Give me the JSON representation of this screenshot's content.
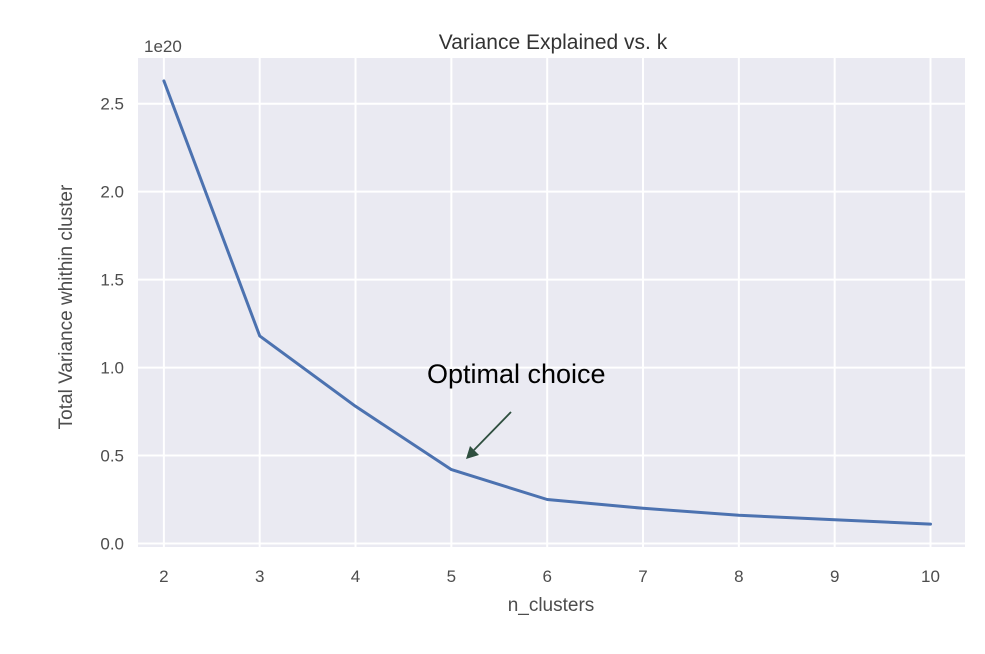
{
  "chart_data": {
    "type": "line",
    "title": "Variance Explained vs. k",
    "xlabel": "n_clusters",
    "ylabel": "Total Variance whithin cluster",
    "y_offset_label": "1e20",
    "x": [
      2,
      3,
      4,
      5,
      6,
      7,
      8,
      9,
      10
    ],
    "y": [
      2.63,
      1.18,
      0.78,
      0.42,
      0.25,
      0.2,
      0.16,
      0.135,
      0.11
    ],
    "xlim": [
      1.73,
      10.36
    ],
    "ylim": [
      -0.02,
      2.76
    ],
    "x_ticks": [
      2,
      3,
      4,
      5,
      6,
      7,
      8,
      9,
      10
    ],
    "y_ticks": [
      0.0,
      0.5,
      1.0,
      1.5,
      2.0,
      2.5
    ],
    "y_tick_labels": [
      "0.0",
      "0.5",
      "1.0",
      "1.5",
      "2.0",
      "2.5"
    ],
    "grid": true,
    "annotation": {
      "text": "Optimal choice",
      "target_x": 5,
      "target_y": 0.42
    },
    "colors": {
      "line": "#4c72b0",
      "plot_background": "#eaeaf2",
      "grid": "#ffffff",
      "arrow": "#2f4f3f"
    }
  }
}
